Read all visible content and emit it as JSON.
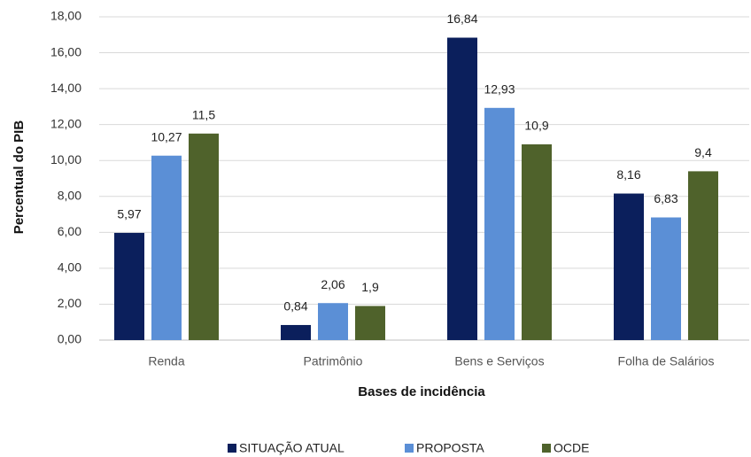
{
  "chart_data": {
    "type": "bar",
    "x_label": "Bases de incidência",
    "y_label": "Percentual do PIB",
    "categories": [
      "Renda",
      "Patrimônio",
      "Bens e Serviços",
      "Folha de Salários"
    ],
    "series": [
      {
        "name": "SITUAÇÃO ATUAL",
        "color": "#0b1f5c",
        "values": [
          5.97,
          0.84,
          16.84,
          8.16
        ],
        "value_labels": [
          "5,97",
          "0,84",
          "16,84",
          "8,16"
        ]
      },
      {
        "name": "PROPOSTA",
        "color": "#5b8fd6",
        "values": [
          10.27,
          2.06,
          12.93,
          6.83
        ],
        "value_labels": [
          "10,27",
          "2,06",
          "12,93",
          "6,83"
        ]
      },
      {
        "name": "OCDE",
        "color": "#4f622b",
        "values": [
          11.5,
          1.9,
          10.9,
          9.4
        ],
        "value_labels": [
          "11,5",
          "1,9",
          "10,9",
          "9,4"
        ]
      }
    ],
    "ylim": [
      0,
      18
    ],
    "yticks": [
      {
        "value": 0,
        "label": "0,00"
      },
      {
        "value": 2,
        "label": "2,00"
      },
      {
        "value": 4,
        "label": "4,00"
      },
      {
        "value": 6,
        "label": "6,00"
      },
      {
        "value": 8,
        "label": "8,00"
      },
      {
        "value": 10,
        "label": "10,00"
      },
      {
        "value": 12,
        "label": "12,00"
      },
      {
        "value": 14,
        "label": "14,00"
      },
      {
        "value": 16,
        "label": "16,00"
      },
      {
        "value": 18,
        "label": "18,00"
      }
    ],
    "grid": true,
    "legend": "bottom"
  }
}
